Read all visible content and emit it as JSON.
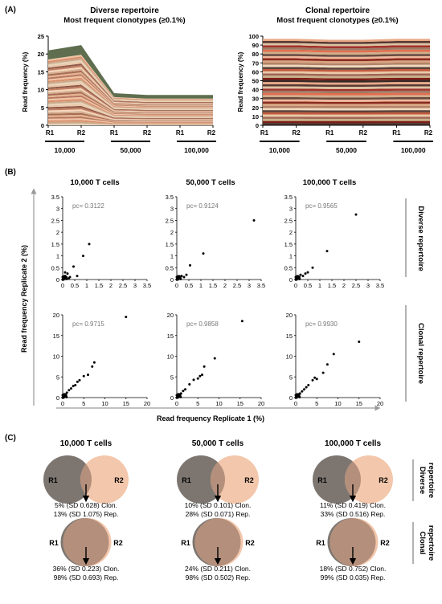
{
  "panels": {
    "A": {
      "label": "(A)",
      "charts": [
        {
          "title_line1": "Diverse repertoire",
          "title_line2": "Most frequent clonotypes (≥0.1%)",
          "ylabel": "Read frequency (%)",
          "ylim": [
            0,
            25
          ],
          "yticks": [
            "0",
            "5",
            "10",
            "15",
            "20",
            "25"
          ],
          "x_labels": [
            "R1",
            "R2",
            "R1",
            "R2",
            "R1",
            "R2"
          ],
          "groups": [
            "10,000",
            "50,000",
            "100,000"
          ],
          "top_band_color": "#5e6e4f",
          "totals": [
            21,
            22.5,
            9,
            8.5,
            8.5,
            8.5
          ]
        },
        {
          "title_line1": "Clonal repertoire",
          "title_line2": "Most frequent clonotypes (≥0.1%)",
          "ylabel": "Read frequency (%)",
          "ylim": [
            0,
            100
          ],
          "yticks": [
            "0",
            "10",
            "20",
            "30",
            "40",
            "50",
            "60",
            "70",
            "80",
            "90",
            "100"
          ],
          "x_labels": [
            "R1",
            "R2",
            "R1",
            "R2",
            "R1",
            "R2"
          ],
          "groups": [
            "10,000",
            "50,000",
            "100,000"
          ],
          "totals": [
            97,
            97,
            96,
            96,
            97,
            97
          ]
        }
      ]
    },
    "B": {
      "label": "(B)",
      "col_titles": [
        "10,000 T cells",
        "50,000 T cells",
        "100,000 T cells"
      ],
      "row_labels": [
        "Diverse repertoire",
        "Clonal repertoire"
      ],
      "ylabel": "Read frequency Replicate 2 (%)",
      "xlabel": "Read frequency Replicate 1 (%)",
      "top_ticks": [
        "0",
        "0.5",
        "1",
        "1.5",
        "2",
        "2.5",
        "3",
        "3.5"
      ],
      "bottom_ticks": [
        "0",
        "5",
        "10",
        "15",
        "20"
      ],
      "pc": [
        [
          "pc= 0.3122",
          "pc= 0.9124",
          "pc= 0.9565"
        ],
        [
          "pc= 0.9715",
          "pc= 0.9858",
          "pc= 0.9930"
        ]
      ]
    },
    "C": {
      "label": "(C)",
      "col_titles": [
        "10,000 T cells",
        "50,000 T cells",
        "100,000 T cells"
      ],
      "row_labels": [
        [
          "Diverse",
          "repertoire"
        ],
        [
          "Clonal",
          "repertoire"
        ]
      ],
      "circle_left": "R1",
      "circle_right": "R2",
      "stats": [
        [
          [
            "5% (SD 0.628) Clon.",
            "13% (SD 1.075) Rep."
          ],
          [
            "10% (SD 0.101) Clon.",
            "28% (SD 0.071) Rep."
          ],
          [
            "11% (SD 0.419) Clon.",
            "33% (SD 0.516) Rep."
          ]
        ],
        [
          [
            "36% (SD 0.223) Clon.",
            "98% (SD 0.693) Rep."
          ],
          [
            "24% (SD 0.211) Clon.",
            "98% (SD 0.502) Rep."
          ],
          [
            "18% (SD 0.752) Clon.",
            "99% (SD 0.035) Rep."
          ]
        ]
      ],
      "r1_color": "#7d7670",
      "r2_color": "#f3c7ab",
      "overlap_color": "#b48f7c"
    }
  },
  "chart_data": [
    {
      "type": "area",
      "title": "Diverse repertoire Most frequent clonotypes (≥0.1%)",
      "ylabel": "Read frequency (%)",
      "ylim": [
        0,
        25
      ],
      "categories": [
        "R1",
        "R2",
        "R1",
        "R2",
        "R1",
        "R2"
      ],
      "groups": [
        "10,000",
        "50,000",
        "100,000"
      ],
      "total_values": [
        21,
        22.5,
        9,
        8.5,
        8.5,
        8.5
      ]
    },
    {
      "type": "area",
      "title": "Clonal repertoire Most frequent clonotypes (≥0.1%)",
      "ylabel": "Read frequency (%)",
      "ylim": [
        0,
        100
      ],
      "categories": [
        "R1",
        "R2",
        "R1",
        "R2",
        "R1",
        "R2"
      ],
      "groups": [
        "10,000",
        "50,000",
        "100,000"
      ],
      "total_values": [
        97,
        97,
        96,
        96,
        97,
        97
      ]
    },
    {
      "type": "scatter",
      "title": "10,000 T cells",
      "row": "Diverse repertoire",
      "xlim": [
        0,
        3.5
      ],
      "ylim": [
        0,
        3.5
      ],
      "pc": 0.3122,
      "x": [
        0.05,
        0.1,
        0.15,
        0.2,
        0.25,
        0.1,
        0.3,
        0.45,
        0.6,
        0.85,
        1.1
      ],
      "y": [
        0.05,
        0.15,
        0.1,
        0.25,
        0.05,
        0.3,
        0.1,
        0.55,
        0.15,
        1.0,
        1.5
      ]
    },
    {
      "type": "scatter",
      "title": "50,000 T cells",
      "row": "Diverse repertoire",
      "xlim": [
        0,
        3.5
      ],
      "ylim": [
        0,
        3.5
      ],
      "pc": 0.9124,
      "x": [
        0.05,
        0.1,
        0.15,
        0.2,
        0.3,
        0.4,
        0.55,
        1.1,
        3.2
      ],
      "y": [
        0.05,
        0.1,
        0.05,
        0.15,
        0.1,
        0.2,
        0.6,
        1.1,
        2.5
      ]
    },
    {
      "type": "scatter",
      "title": "100,000 T cells",
      "row": "Diverse repertoire",
      "xlim": [
        0,
        3.5
      ],
      "ylim": [
        0,
        3.5
      ],
      "pc": 0.9565,
      "x": [
        0.05,
        0.1,
        0.15,
        0.2,
        0.3,
        0.4,
        0.5,
        0.7,
        1.3,
        2.5
      ],
      "y": [
        0.05,
        0.1,
        0.1,
        0.2,
        0.15,
        0.25,
        0.3,
        0.5,
        1.2,
        2.75
      ]
    },
    {
      "type": "scatter",
      "title": "10,000 T cells",
      "row": "Clonal repertoire",
      "xlim": [
        0,
        20
      ],
      "ylim": [
        0,
        20
      ],
      "pc": 0.9715,
      "x": [
        0.5,
        1,
        1.5,
        2,
        2.5,
        3,
        3.5,
        4,
        5,
        6,
        7,
        7.5,
        15
      ],
      "y": [
        0.5,
        1.2,
        1.8,
        2.2,
        2.8,
        3.0,
        3.8,
        4.2,
        5.2,
        5.5,
        7.5,
        8.5,
        19.5
      ]
    },
    {
      "type": "scatter",
      "title": "50,000 T cells",
      "row": "Clonal repertoire",
      "xlim": [
        0,
        20
      ],
      "ylim": [
        0,
        20
      ],
      "pc": 0.9858,
      "x": [
        0.5,
        1,
        1.5,
        2,
        3,
        4,
        5,
        5.5,
        6,
        6.5,
        9,
        15.5
      ],
      "y": [
        0.4,
        1.0,
        1.6,
        2.0,
        3.2,
        4.3,
        4.6,
        5.2,
        5.5,
        7.5,
        9.5,
        18.5
      ]
    },
    {
      "type": "scatter",
      "title": "100,000 T cells",
      "row": "Clonal repertoire",
      "xlim": [
        0,
        20
      ],
      "ylim": [
        0,
        20
      ],
      "pc": 0.993,
      "x": [
        0.5,
        1,
        1.5,
        2,
        2.5,
        3,
        4,
        4.5,
        5,
        6.5,
        7.5,
        9,
        15
      ],
      "y": [
        0.5,
        1.0,
        1.5,
        2.0,
        2.5,
        3.0,
        4.2,
        4.8,
        4.5,
        6.0,
        8.0,
        10.5,
        13.5
      ]
    },
    {
      "type": "venn",
      "rows": [
        "Diverse repertoire",
        "Clonal repertoire"
      ],
      "columns": [
        "10,000 T cells",
        "50,000 T cells",
        "100,000 T cells"
      ],
      "overlap_clonotypes_pct": [
        [
          5,
          10,
          11
        ],
        [
          36,
          24,
          18
        ]
      ],
      "overlap_clonotypes_sd": [
        [
          0.628,
          0.101,
          0.419
        ],
        [
          0.223,
          0.211,
          0.752
        ]
      ],
      "overlap_reads_pct": [
        [
          13,
          28,
          33
        ],
        [
          98,
          98,
          99
        ]
      ],
      "overlap_reads_sd": [
        [
          1.075,
          0.071,
          0.516
        ],
        [
          0.693,
          0.502,
          0.035
        ]
      ]
    }
  ]
}
